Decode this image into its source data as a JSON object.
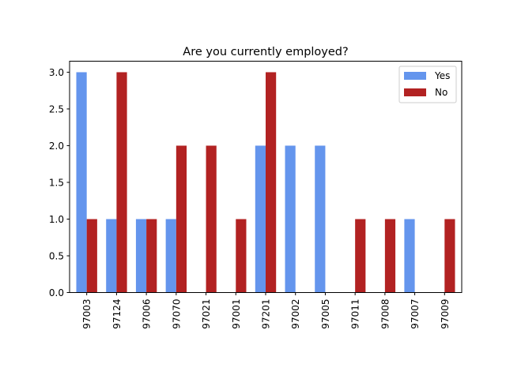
{
  "chart_data": {
    "type": "bar",
    "title": "Are you currently employed?",
    "xlabel": "",
    "ylabel": "",
    "categories": [
      "97003",
      "97124",
      "97006",
      "97070",
      "97021",
      "97001",
      "97201",
      "97002",
      "97005",
      "97011",
      "97008",
      "97007",
      "97009"
    ],
    "series": [
      {
        "name": "Yes",
        "color": "#6495ed",
        "values": [
          3,
          1,
          1,
          1,
          0,
          0,
          2,
          2,
          2,
          0,
          0,
          1,
          0
        ]
      },
      {
        "name": "No",
        "color": "#b22222",
        "values": [
          1,
          3,
          1,
          2,
          2,
          1,
          3,
          0,
          0,
          1,
          1,
          0,
          1
        ]
      }
    ],
    "ylim": [
      0,
      3.15
    ],
    "yticks": [
      "0.0",
      "0.5",
      "1.0",
      "1.5",
      "2.0",
      "2.5",
      "3.0"
    ],
    "legend": "top-right",
    "grid": false
  }
}
